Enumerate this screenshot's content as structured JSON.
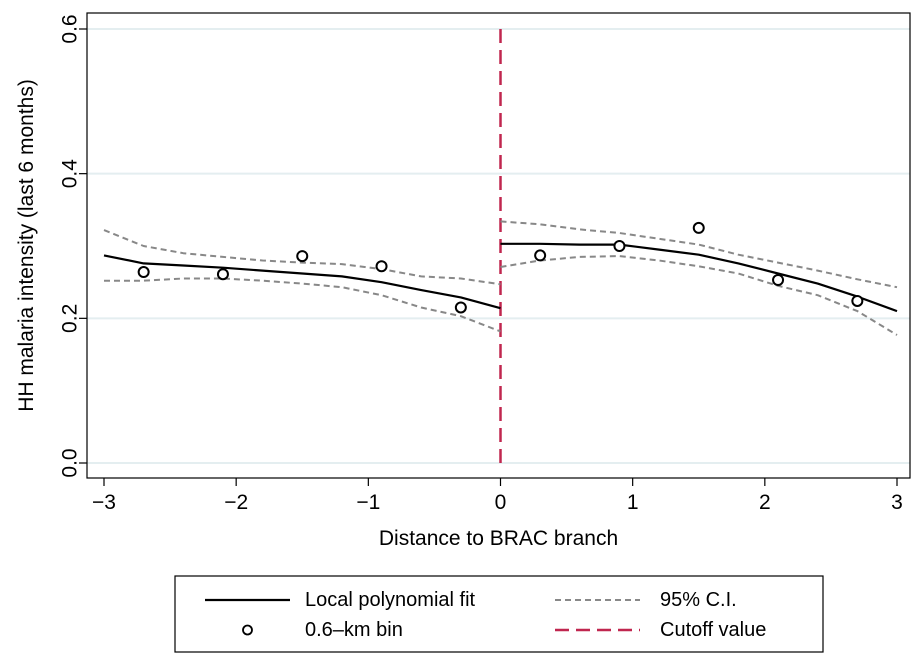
{
  "chart_data": {
    "type": "line",
    "xlabel": "Distance to BRAC branch",
    "ylabel": "HH malaria intensity (last 6 months)",
    "xlim": [
      -3,
      3
    ],
    "ylim": [
      0,
      0.6
    ],
    "xticks": [
      -3,
      -2,
      -1,
      0,
      1,
      2,
      3
    ],
    "xtick_labels": [
      "−3",
      "−2",
      "−1",
      "0",
      "1",
      "2",
      "3"
    ],
    "yticks": [
      0,
      0.2,
      0.4,
      0.6
    ],
    "ytick_labels": [
      "0.0",
      "0.2",
      "0.4",
      "0.6"
    ],
    "grid": "horizontal",
    "legend": "bottom",
    "cutoff": 0,
    "series": [
      {
        "name": "Local polynomial fit",
        "kind": "line",
        "style": "solid",
        "color": "#000000",
        "segments": [
          {
            "x": [
              -3,
              -2.7,
              -2.4,
              -2.1,
              -1.8,
              -1.5,
              -1.2,
              -0.9,
              -0.6,
              -0.3,
              0
            ],
            "y": [
              0.287,
              0.276,
              0.273,
              0.27,
              0.266,
              0.262,
              0.258,
              0.25,
              0.239,
              0.229,
              0.214
            ]
          },
          {
            "x": [
              0,
              0.3,
              0.6,
              0.9,
              1.2,
              1.5,
              1.8,
              2.1,
              2.4,
              2.7,
              3
            ],
            "y": [
              0.303,
              0.303,
              0.302,
              0.302,
              0.295,
              0.288,
              0.276,
              0.262,
              0.248,
              0.23,
              0.21
            ]
          }
        ]
      },
      {
        "name": "95% C.I.",
        "kind": "line",
        "style": "dashed",
        "color": "#888888",
        "segments": [
          {
            "x": [
              -3,
              -2.7,
              -2.4,
              -2.1,
              -1.8,
              -1.5,
              -1.2,
              -0.9,
              -0.6,
              -0.3,
              0
            ],
            "y": [
              0.322,
              0.3,
              0.29,
              0.285,
              0.28,
              0.277,
              0.275,
              0.268,
              0.258,
              0.255,
              0.247
            ]
          },
          {
            "x": [
              -3,
              -2.7,
              -2.4,
              -2.1,
              -1.8,
              -1.5,
              -1.2,
              -0.9,
              -0.6,
              -0.3,
              0
            ],
            "y": [
              0.252,
              0.252,
              0.255,
              0.255,
              0.252,
              0.248,
              0.243,
              0.232,
              0.215,
              0.203,
              0.182
            ]
          },
          {
            "x": [
              0,
              0.3,
              0.6,
              0.9,
              1.2,
              1.5,
              1.8,
              2.1,
              2.4,
              2.7,
              3
            ],
            "y": [
              0.334,
              0.33,
              0.323,
              0.318,
              0.31,
              0.302,
              0.288,
              0.277,
              0.266,
              0.254,
              0.243
            ]
          },
          {
            "x": [
              0,
              0.3,
              0.6,
              0.9,
              1.2,
              1.5,
              1.8,
              2.1,
              2.4,
              2.7,
              3
            ],
            "y": [
              0.271,
              0.28,
              0.285,
              0.286,
              0.28,
              0.272,
              0.262,
              0.245,
              0.232,
              0.21,
              0.177
            ]
          }
        ]
      },
      {
        "name": "0.6–km bin",
        "kind": "scatter",
        "marker": "hollow-circle",
        "color": "#000000",
        "x": [
          -2.7,
          -2.1,
          -1.5,
          -0.9,
          -0.3,
          0.3,
          0.9,
          1.5,
          2.1,
          2.7
        ],
        "y": [
          0.264,
          0.261,
          0.286,
          0.272,
          0.215,
          0.287,
          0.3,
          0.325,
          0.253,
          0.224
        ]
      },
      {
        "name": "Cutoff value",
        "kind": "vline",
        "style": "dashed",
        "color": "#c0264f",
        "x": 0
      }
    ]
  }
}
